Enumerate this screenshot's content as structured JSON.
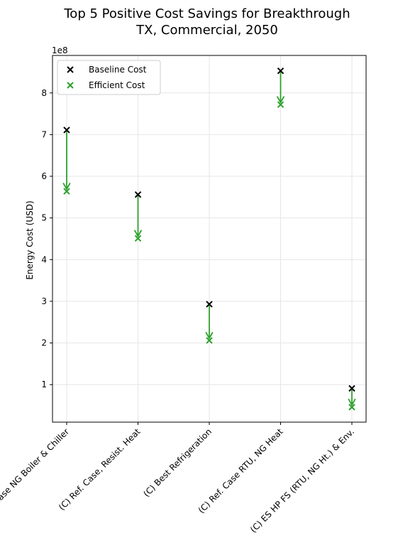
{
  "chart_data": {
    "type": "scatter",
    "title_line1": "Top 5 Positive Cost Savings for Breakthrough",
    "title_line2": "TX, Commercial, 2050",
    "ylabel": "Energy Cost (USD)",
    "y_offset_label": "1e8",
    "categories": [
      "(C) Ref. Case NG Boiler & Chiller",
      "(C) Ref. Case, Resist. Heat",
      "(C) Best Refrigeration",
      "(C) Ref. Case RTU, NG Heat",
      "(C) ES HP FS (RTU, NG Ht.) & Env."
    ],
    "series": [
      {
        "name": "Baseline Cost",
        "values": [
          711000000,
          556000000,
          293000000,
          853000000,
          91000000
        ],
        "color": "#000000"
      },
      {
        "name": "Efficient Cost",
        "values": [
          564000000,
          451000000,
          206000000,
          772000000,
          46000000
        ],
        "color": "#2ca02c"
      }
    ],
    "yticks": [
      100000000,
      200000000,
      300000000,
      400000000,
      500000000,
      600000000,
      700000000,
      800000000
    ],
    "ytick_labels": [
      "1",
      "2",
      "3",
      "4",
      "5",
      "6",
      "7",
      "8"
    ],
    "ylim": [
      10000000,
      890000000
    ],
    "grid": true,
    "legend_position": "top-left",
    "arrow_color": "#2ca02c"
  }
}
